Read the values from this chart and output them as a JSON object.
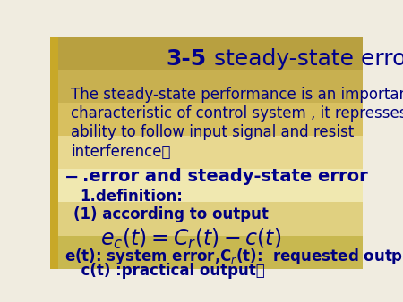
{
  "background_color": "#f0ece0",
  "title_bold_part": "3-5",
  "title_regular_part": " steady-state error calculation",
  "title_color": "#00008B",
  "title_fontsize": 18,
  "body_color": "#000080",
  "body_fontsize": 12,
  "section_header_dash": "−",
  "section_header_rest": ".error and steady-state error",
  "section_header_fontsize": 14,
  "para1_lines": [
    "The steady-state performance is an important",
    "characteristic of control system , it represses the",
    "ability to follow input signal and resist",
    "interference。"
  ],
  "def_line": "1.definition:",
  "output_line": "(1) according to output",
  "bottom_line1": "e(t): system error,C$_r$(t):  requested output,",
  "bottom_line2": "  c(t) :practical output。",
  "header_colors": [
    "#b8a040",
    "#c8b050",
    "#d8c060",
    "#e8d890",
    "#f0e8b0",
    "#e0d080",
    "#c8b850"
  ],
  "left_bar_color": "#c8a828"
}
